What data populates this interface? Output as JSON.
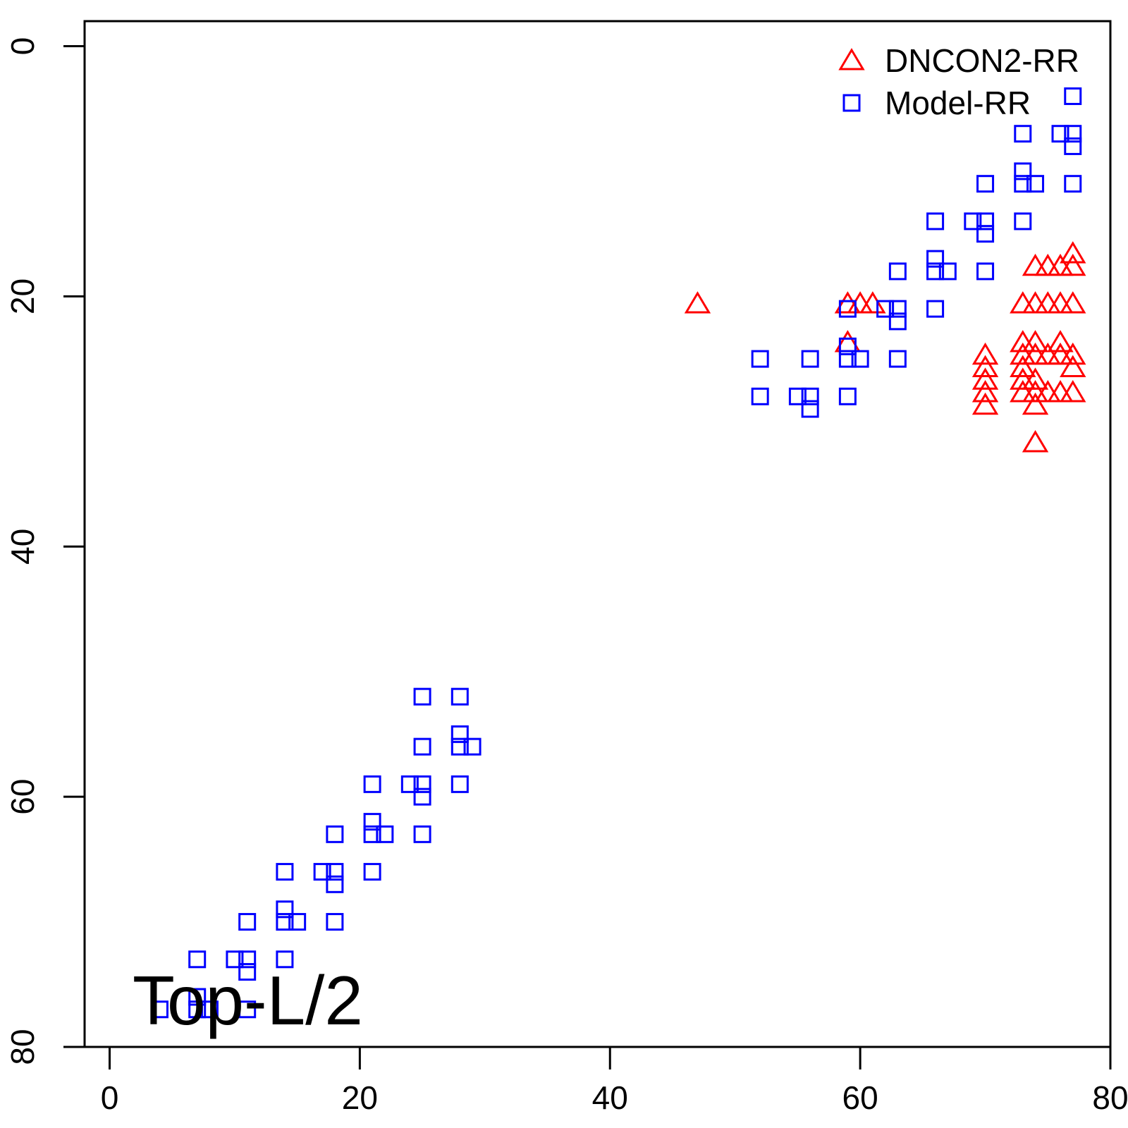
{
  "chart_data": {
    "type": "scatter",
    "title": "",
    "xlabel": "",
    "ylabel": "",
    "annotation": "Top-L/2",
    "xlim": [
      -2,
      80
    ],
    "ylim": [
      80,
      -2
    ],
    "x_ticks": [
      0,
      20,
      40,
      60,
      80
    ],
    "y_ticks": [
      0,
      20,
      40,
      60,
      80
    ],
    "grid": false,
    "legend_position": "top-right",
    "series": [
      {
        "name": "DNCON2-RR",
        "marker": "triangle",
        "color": "#ff0000",
        "points": [
          [
            47,
            20.6
          ],
          [
            59,
            20.6
          ],
          [
            60,
            20.6
          ],
          [
            61,
            20.6
          ],
          [
            59,
            23.7
          ],
          [
            70,
            24.7
          ],
          [
            70,
            25.7
          ],
          [
            70,
            26.7
          ],
          [
            70,
            27.7
          ],
          [
            70,
            28.7
          ],
          [
            73,
            23.7
          ],
          [
            73,
            24.7
          ],
          [
            73,
            25.7
          ],
          [
            73,
            26.7
          ],
          [
            73,
            27.7
          ],
          [
            73,
            20.6
          ],
          [
            74,
            20.6
          ],
          [
            75,
            20.6
          ],
          [
            76,
            20.6
          ],
          [
            77,
            20.6
          ],
          [
            74,
            17.6
          ],
          [
            75,
            17.6
          ],
          [
            76,
            17.6
          ],
          [
            77,
            17.6
          ],
          [
            77,
            16.6
          ],
          [
            74,
            23.7
          ],
          [
            74,
            24.7
          ],
          [
            75,
            24.7
          ],
          [
            76,
            23.7
          ],
          [
            76,
            24.7
          ],
          [
            77,
            24.7
          ],
          [
            74,
            26.7
          ],
          [
            74,
            27.7
          ],
          [
            75,
            27.7
          ],
          [
            76,
            27.7
          ],
          [
            77,
            27.7
          ],
          [
            77,
            25.7
          ],
          [
            74,
            28.7
          ],
          [
            74,
            31.7
          ]
        ]
      },
      {
        "name": "Model-RR",
        "marker": "square",
        "color": "#0000ff",
        "points": [
          [
            77,
            4
          ],
          [
            73,
            7
          ],
          [
            76,
            7
          ],
          [
            77,
            7
          ],
          [
            77,
            8
          ],
          [
            73,
            10
          ],
          [
            73,
            11
          ],
          [
            74,
            11
          ],
          [
            70,
            11
          ],
          [
            77,
            11
          ],
          [
            66,
            14
          ],
          [
            69,
            14
          ],
          [
            70,
            14
          ],
          [
            73,
            14
          ],
          [
            70,
            15
          ],
          [
            66,
            17
          ],
          [
            66,
            18
          ],
          [
            67,
            18
          ],
          [
            63,
            18
          ],
          [
            70,
            18
          ],
          [
            59,
            21
          ],
          [
            62,
            21
          ],
          [
            63,
            21
          ],
          [
            63,
            22
          ],
          [
            66,
            21
          ],
          [
            59,
            24
          ],
          [
            52,
            25
          ],
          [
            56,
            25
          ],
          [
            59,
            25
          ],
          [
            60,
            25
          ],
          [
            63,
            25
          ],
          [
            52,
            28
          ],
          [
            55,
            28
          ],
          [
            56,
            28
          ],
          [
            56,
            29
          ],
          [
            59,
            28
          ],
          [
            25,
            52
          ],
          [
            28,
            52
          ],
          [
            28,
            55
          ],
          [
            25,
            56
          ],
          [
            28,
            56
          ],
          [
            29,
            56
          ],
          [
            21,
            59
          ],
          [
            24,
            59
          ],
          [
            25,
            59
          ],
          [
            28,
            59
          ],
          [
            25,
            60
          ],
          [
            21,
            62
          ],
          [
            21,
            63
          ],
          [
            22,
            63
          ],
          [
            18,
            63
          ],
          [
            25,
            63
          ],
          [
            14,
            66
          ],
          [
            17,
            66
          ],
          [
            18,
            66
          ],
          [
            21,
            66
          ],
          [
            18,
            67
          ],
          [
            14,
            69
          ],
          [
            14,
            70
          ],
          [
            15,
            70
          ],
          [
            11,
            70
          ],
          [
            18,
            70
          ],
          [
            7,
            73
          ],
          [
            10,
            73
          ],
          [
            11,
            73
          ],
          [
            14,
            73
          ],
          [
            11,
            74
          ],
          [
            4,
            77
          ],
          [
            7,
            76
          ],
          [
            7,
            77
          ],
          [
            8,
            77
          ],
          [
            11,
            77
          ]
        ]
      }
    ]
  }
}
